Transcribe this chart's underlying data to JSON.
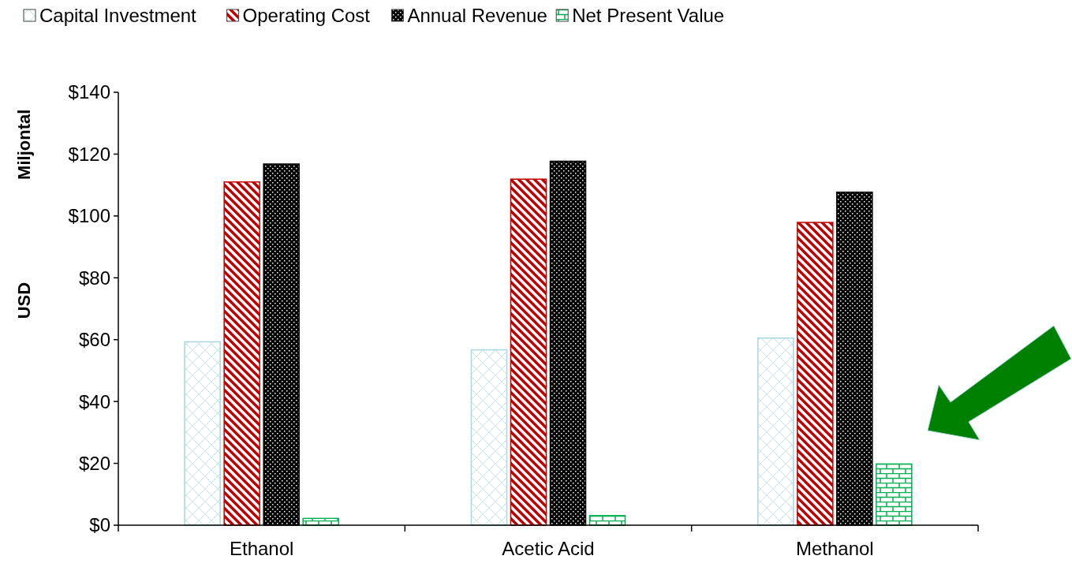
{
  "chart_data": {
    "type": "bar",
    "ylabel": "USD Miljontal",
    "categories": [
      "Ethanol",
      "Acetic Acid",
      "Methanol"
    ],
    "series": [
      {
        "name": "Capital Investment",
        "color": "#a8d8e0",
        "values": [
          59.3,
          56.7,
          60.5
        ]
      },
      {
        "name": "Operating Cost",
        "color": "#c00000",
        "values": [
          111.0,
          111.9,
          97.9
        ]
      },
      {
        "name": "Annual Revenue",
        "color": "#000000",
        "values": [
          116.8,
          117.7,
          107.7
        ]
      },
      {
        "name": "Net Present Value",
        "color": "#00b050",
        "values": [
          2.2,
          3.1,
          19.8
        ]
      }
    ],
    "ylim": [
      0,
      140
    ],
    "yticks": [
      {
        "value": 0,
        "label": "$0"
      },
      {
        "value": 20,
        "label": "$20"
      },
      {
        "value": 40,
        "label": "$40"
      },
      {
        "value": 60,
        "label": "$60"
      },
      {
        "value": 80,
        "label": "$80"
      },
      {
        "value": 100,
        "label": "$100"
      },
      {
        "value": 120,
        "label": "$120"
      },
      {
        "value": 140,
        "label": "$140"
      }
    ],
    "legend": "top",
    "grid": false
  }
}
